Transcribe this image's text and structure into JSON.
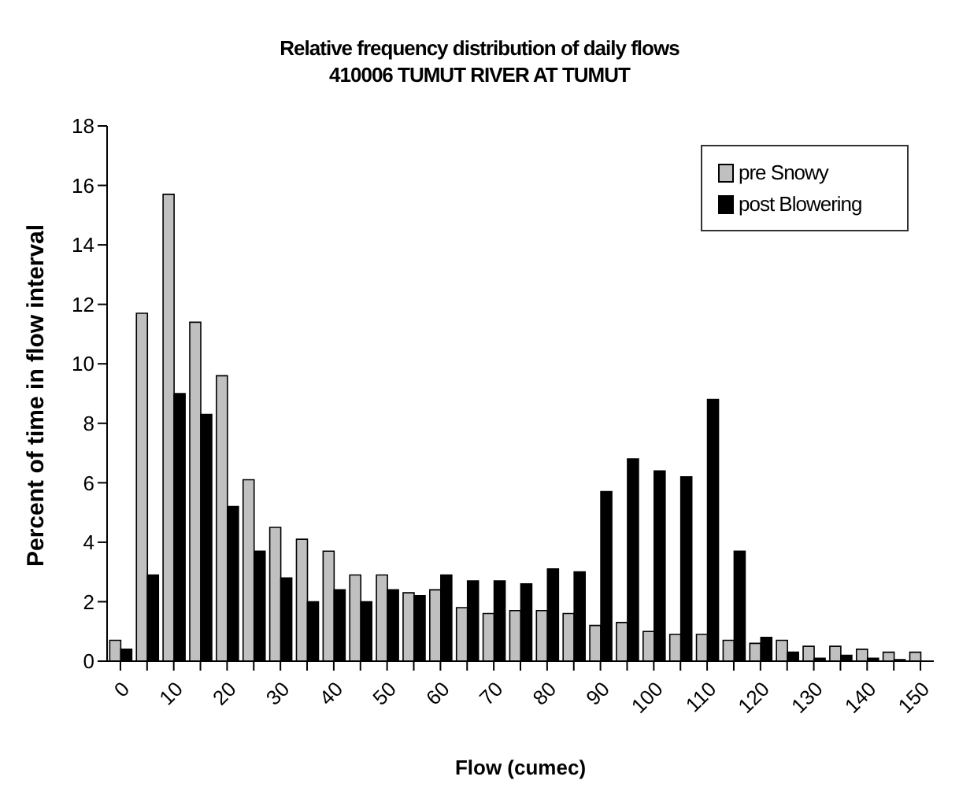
{
  "chart_data": {
    "type": "bar",
    "title": "Relative frequency distribution of daily flows",
    "subtitle": "410006 TUMUT RIVER AT TUMUT",
    "xlabel": "Flow (cumec)",
    "ylabel": "Percent of time in flow interval",
    "categories": [
      "0",
      null,
      "10",
      null,
      "20",
      null,
      "30",
      null,
      "40",
      null,
      "50",
      null,
      "60",
      null,
      "70",
      null,
      "80",
      null,
      "90",
      null,
      "100",
      null,
      "110",
      null,
      "120",
      null,
      "130",
      null,
      "140",
      null,
      "150"
    ],
    "series": [
      {
        "name": "pre Snowy",
        "color": "#c0c0c0",
        "values": [
          0.7,
          11.7,
          15.7,
          11.4,
          9.6,
          6.1,
          4.5,
          4.1,
          3.7,
          2.9,
          2.9,
          2.3,
          2.4,
          1.8,
          1.6,
          1.7,
          1.7,
          1.6,
          1.2,
          1.3,
          1.0,
          0.9,
          0.9,
          0.7,
          0.6,
          0.7,
          0.5,
          0.5,
          0.4,
          0.3,
          0.3
        ]
      },
      {
        "name": "post Blowering",
        "color": "#000000",
        "values": [
          0.4,
          2.9,
          9.0,
          8.3,
          5.2,
          3.7,
          2.8,
          2.0,
          2.4,
          2.0,
          2.4,
          2.2,
          2.9,
          2.7,
          2.7,
          2.6,
          3.1,
          3.0,
          5.7,
          6.8,
          6.4,
          6.2,
          8.8,
          3.7,
          0.8,
          0.3,
          0.1,
          0.2,
          0.1,
          0.05,
          0
        ]
      }
    ],
    "ylim": [
      0,
      18
    ],
    "yticks": [
      0,
      2,
      4,
      6,
      8,
      10,
      12,
      14,
      16,
      18
    ],
    "legend": "top right"
  }
}
